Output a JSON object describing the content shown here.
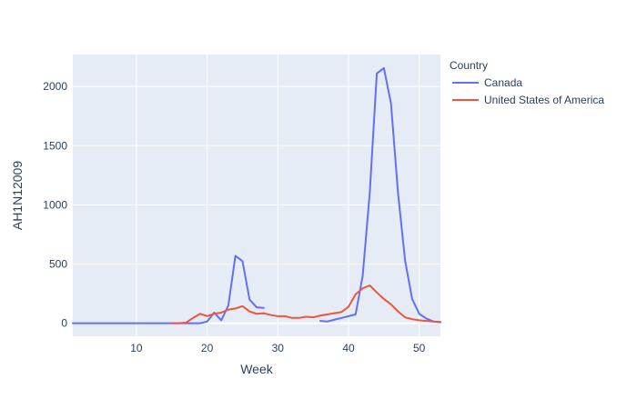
{
  "chart_data": {
    "type": "line",
    "title": "",
    "xlabel": "Week",
    "ylabel": "AH1N12009",
    "xlim": [
      1,
      53
    ],
    "ylim": [
      -110,
      2270
    ],
    "x_ticks": [
      10,
      20,
      30,
      40,
      50
    ],
    "y_ticks": [
      0,
      500,
      1000,
      1500,
      2000
    ],
    "grid": true,
    "legend": {
      "title": "Country",
      "placement": "top-right-outside"
    },
    "series": [
      {
        "name": "Canada",
        "color": "#636efa",
        "x": [
          1,
          2,
          3,
          4,
          5,
          6,
          7,
          8,
          9,
          10,
          11,
          12,
          13,
          14,
          15,
          16,
          17,
          18,
          19,
          20,
          21,
          22,
          23,
          24,
          25,
          26,
          27,
          28,
          null,
          36,
          37,
          38,
          39,
          40,
          41,
          42,
          43,
          44,
          45,
          46,
          47,
          48,
          49,
          50,
          51,
          52,
          53
        ],
        "y": [
          0,
          0,
          0,
          0,
          0,
          0,
          0,
          0,
          0,
          0,
          0,
          0,
          0,
          0,
          0,
          0,
          0,
          0,
          0,
          15,
          90,
          25,
          150,
          570,
          525,
          200,
          135,
          130,
          null,
          20,
          15,
          30,
          45,
          60,
          75,
          400,
          1100,
          2110,
          2155,
          1860,
          1100,
          530,
          205,
          80,
          40,
          15,
          10
        ]
      },
      {
        "name": "United States of America",
        "color": "#ef553b",
        "x": [
          15,
          16,
          17,
          18,
          19,
          20,
          21,
          22,
          23,
          24,
          25,
          26,
          27,
          28,
          29,
          30,
          31,
          32,
          33,
          34,
          35,
          36,
          37,
          38,
          39,
          40,
          41,
          42,
          43,
          44,
          45,
          46,
          47,
          48,
          49,
          50,
          51,
          52,
          53
        ],
        "y": [
          0,
          0,
          5,
          45,
          80,
          60,
          80,
          90,
          115,
          125,
          145,
          100,
          80,
          85,
          70,
          60,
          60,
          45,
          45,
          55,
          50,
          65,
          75,
          85,
          95,
          140,
          245,
          295,
          320,
          260,
          205,
          160,
          100,
          50,
          35,
          25,
          20,
          15,
          10
        ]
      }
    ]
  }
}
